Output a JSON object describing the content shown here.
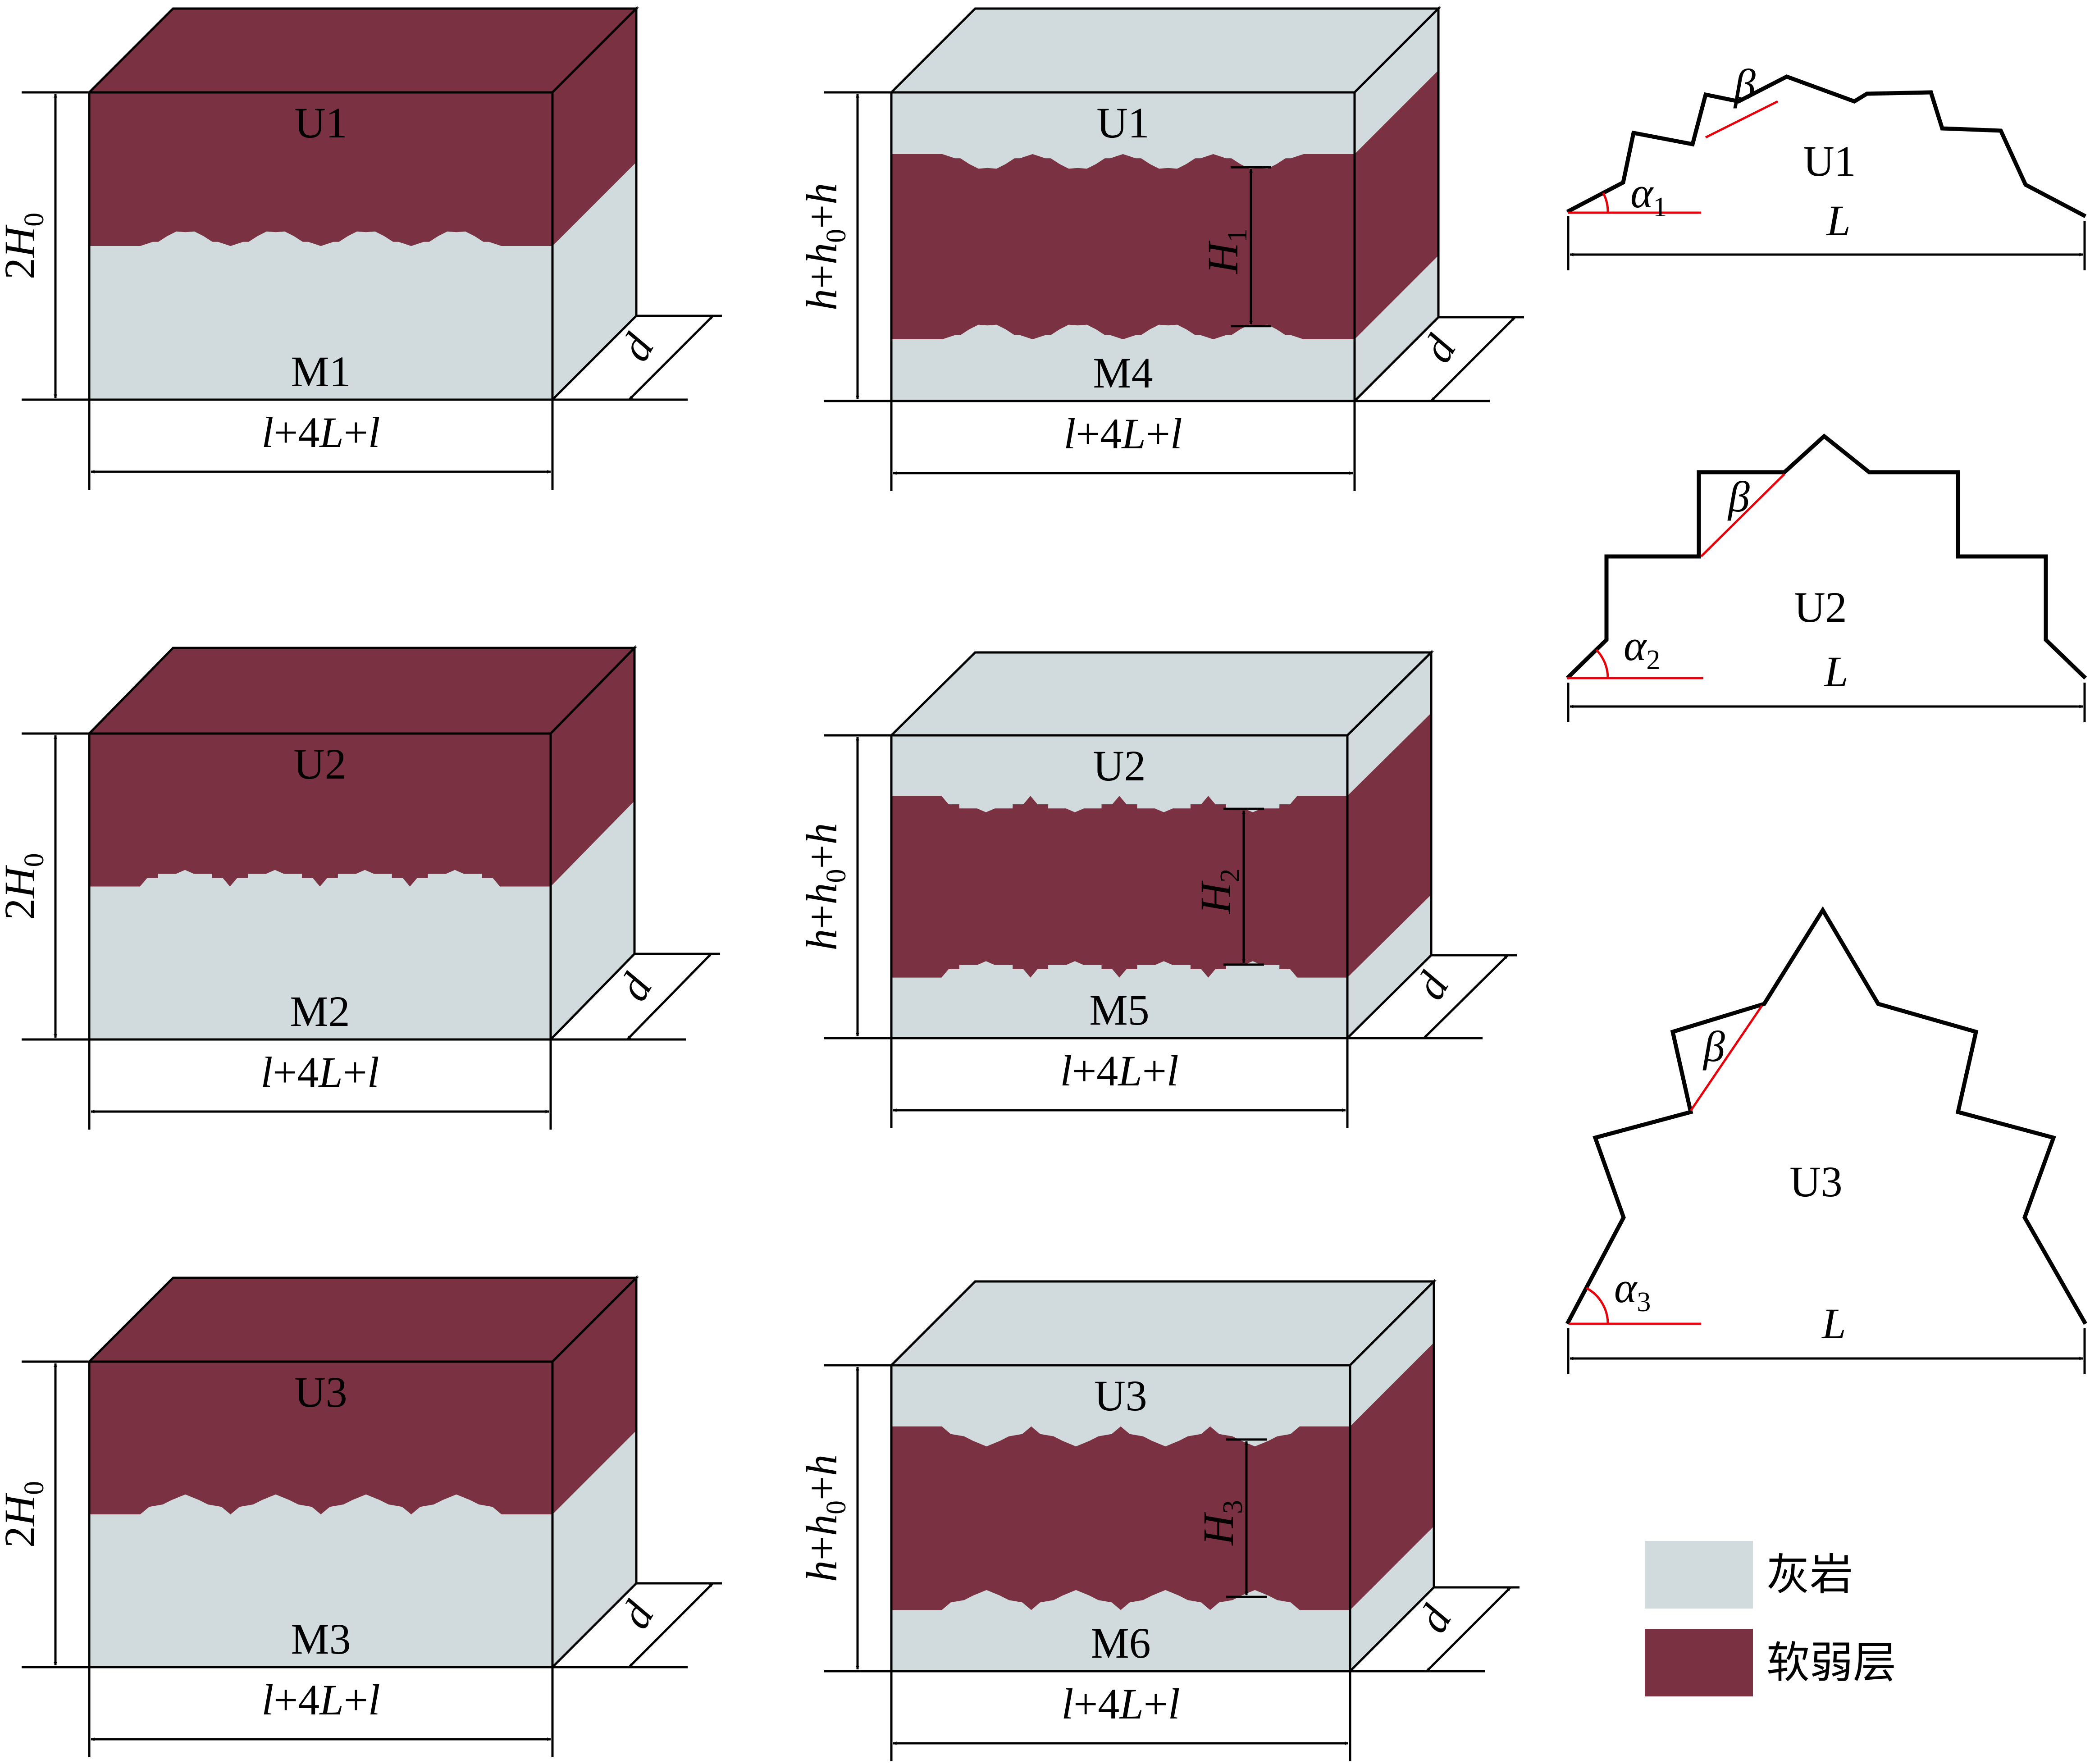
{
  "colors": {
    "limestone": "#d1dadd",
    "weak_layer": "#7a3142",
    "outline": "#000000",
    "angle_line": "#e8000b"
  },
  "models": [
    {
      "name": "M1",
      "interface": "U1",
      "height_label": "2H",
      "height_sub": "0",
      "width_label": "l+4L+l",
      "depth_label": "d"
    },
    {
      "name": "M2",
      "interface": "U2",
      "height_label": "2H",
      "height_sub": "0",
      "width_label": "l+4L+l",
      "depth_label": "d"
    },
    {
      "name": "M3",
      "interface": "U3",
      "height_label": "2H",
      "height_sub": "0",
      "width_label": "l+4L+l",
      "depth_label": "d"
    },
    {
      "name": "M4",
      "interface": "U1",
      "height_label": "h+h",
      "height_sub": "0",
      "height_tail": "+h",
      "width_label": "l+4L+l",
      "depth_label": "d",
      "layer_label": "H",
      "layer_sub": "1"
    },
    {
      "name": "M5",
      "interface": "U2",
      "height_label": "h+h",
      "height_sub": "0",
      "height_tail": "+h",
      "width_label": "l+4L+l",
      "depth_label": "d",
      "layer_label": "H",
      "layer_sub": "2"
    },
    {
      "name": "M6",
      "interface": "U3",
      "height_label": "h+h",
      "height_sub": "0",
      "height_tail": "+h",
      "width_label": "l+4L+l",
      "depth_label": "d",
      "layer_label": "H",
      "layer_sub": "3"
    }
  ],
  "profiles": [
    {
      "name": "U1",
      "alpha": "α",
      "alpha_sub": "1",
      "beta": "β",
      "length": "L"
    },
    {
      "name": "U2",
      "alpha": "α",
      "alpha_sub": "2",
      "beta": "β",
      "length": "L"
    },
    {
      "name": "U3",
      "alpha": "α",
      "alpha_sub": "3",
      "beta": "β",
      "length": "L"
    }
  ],
  "legend": [
    {
      "label": "灰岩",
      "color": "#d1dadd"
    },
    {
      "label": "软弱层",
      "color": "#7a3142"
    }
  ]
}
